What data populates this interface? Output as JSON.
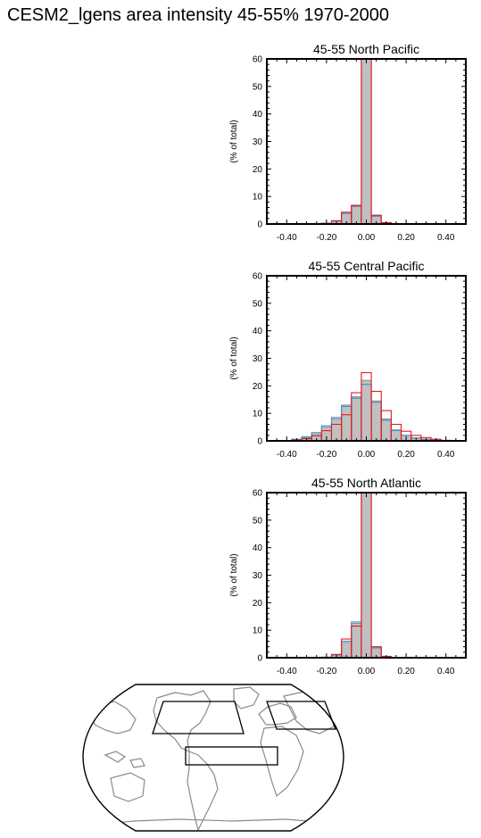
{
  "title": "CESM2_lgens area intensity 45-55% 1970-2000",
  "colors": {
    "bar_fill": "#c0c0c0",
    "bar_edge_gray": "#8c8c8c",
    "blue_series": "#3a8fd0",
    "red_series": "#e8191e",
    "map_coast": "#8a8a8a"
  },
  "chart_data": [
    {
      "type": "bar",
      "title": "45-55 North Pacific",
      "ylabel": "(% of total)",
      "xlabel": "",
      "xlim": [
        -0.5,
        0.5
      ],
      "ylim": [
        0,
        60
      ],
      "bin_width": 0.05,
      "x_ticks": [
        "-0.40",
        "-0.20",
        "0.00",
        "0.20",
        "0.40"
      ],
      "y_ticks": [
        "0",
        "10",
        "20",
        "30",
        "40",
        "50",
        "60"
      ],
      "bin_centers": [
        -0.25,
        -0.2,
        -0.15,
        -0.1,
        -0.05,
        0.0,
        0.05,
        0.1
      ],
      "series": [
        {
          "style": "filled",
          "values": [
            0.0,
            0.3,
            1.0,
            3.8,
            6.3,
            60.0,
            2.8,
            0.4
          ]
        },
        {
          "style": "outline",
          "color": "blue",
          "values": [
            0.0,
            0.3,
            1.1,
            3.9,
            6.6,
            60.0,
            2.9,
            0.4
          ]
        },
        {
          "style": "outline",
          "color": "red",
          "values": [
            0.0,
            0.2,
            1.2,
            4.3,
            6.8,
            60.0,
            3.2,
            0.5
          ]
        }
      ]
    },
    {
      "type": "bar",
      "title": "45-55 Central Pacific",
      "ylabel": "(% of total)",
      "xlabel": "",
      "xlim": [
        -0.5,
        0.5
      ],
      "ylim": [
        0,
        60
      ],
      "bin_width": 0.05,
      "x_ticks": [
        "-0.40",
        "-0.20",
        "0.00",
        "0.20",
        "0.40"
      ],
      "y_ticks": [
        "0",
        "10",
        "20",
        "30",
        "40",
        "50",
        "60"
      ],
      "bin_centers": [
        -0.35,
        -0.3,
        -0.25,
        -0.2,
        -0.15,
        -0.1,
        -0.05,
        0.0,
        0.05,
        0.1,
        0.15,
        0.2,
        0.25,
        0.3,
        0.35,
        0.4
      ],
      "series": [
        {
          "style": "filled",
          "values": [
            0.5,
            1.2,
            2.5,
            5.0,
            8.0,
            13.0,
            16.0,
            22.0,
            14.5,
            8.0,
            4.0,
            2.0,
            1.0,
            0.5,
            0.3,
            0.1
          ]
        },
        {
          "style": "outline",
          "color": "blue",
          "values": [
            0.6,
            1.5,
            3.0,
            5.5,
            8.5,
            12.5,
            15.5,
            20.5,
            14.0,
            7.5,
            3.8,
            2.0,
            1.1,
            0.6,
            0.3,
            0.1
          ]
        },
        {
          "style": "outline",
          "color": "red",
          "values": [
            0.3,
            0.8,
            1.8,
            3.7,
            6.0,
            9.5,
            17.5,
            24.8,
            18.0,
            11.0,
            6.0,
            3.5,
            2.0,
            1.2,
            0.6,
            0.2
          ]
        }
      ]
    },
    {
      "type": "bar",
      "title": "45-55 North Atlantic",
      "ylabel": "(% of total)",
      "xlabel": "",
      "xlim": [
        -0.5,
        0.5
      ],
      "ylim": [
        0,
        60
      ],
      "bin_width": 0.05,
      "x_ticks": [
        "-0.40",
        "-0.20",
        "0.00",
        "0.20",
        "0.40"
      ],
      "y_ticks": [
        "0",
        "10",
        "20",
        "30",
        "40",
        "50",
        "60"
      ],
      "bin_centers": [
        -0.2,
        -0.15,
        -0.1,
        -0.05,
        0.0,
        0.05,
        0.1
      ],
      "series": [
        {
          "style": "filled",
          "values": [
            0.2,
            1.0,
            5.5,
            12.5,
            60.0,
            3.5,
            0.4
          ]
        },
        {
          "style": "outline",
          "color": "blue",
          "values": [
            0.2,
            1.0,
            6.0,
            13.0,
            60.0,
            3.8,
            0.4
          ]
        },
        {
          "style": "outline",
          "color": "red",
          "values": [
            0.1,
            1.2,
            6.8,
            11.5,
            60.0,
            4.0,
            0.5
          ]
        }
      ]
    }
  ]
}
